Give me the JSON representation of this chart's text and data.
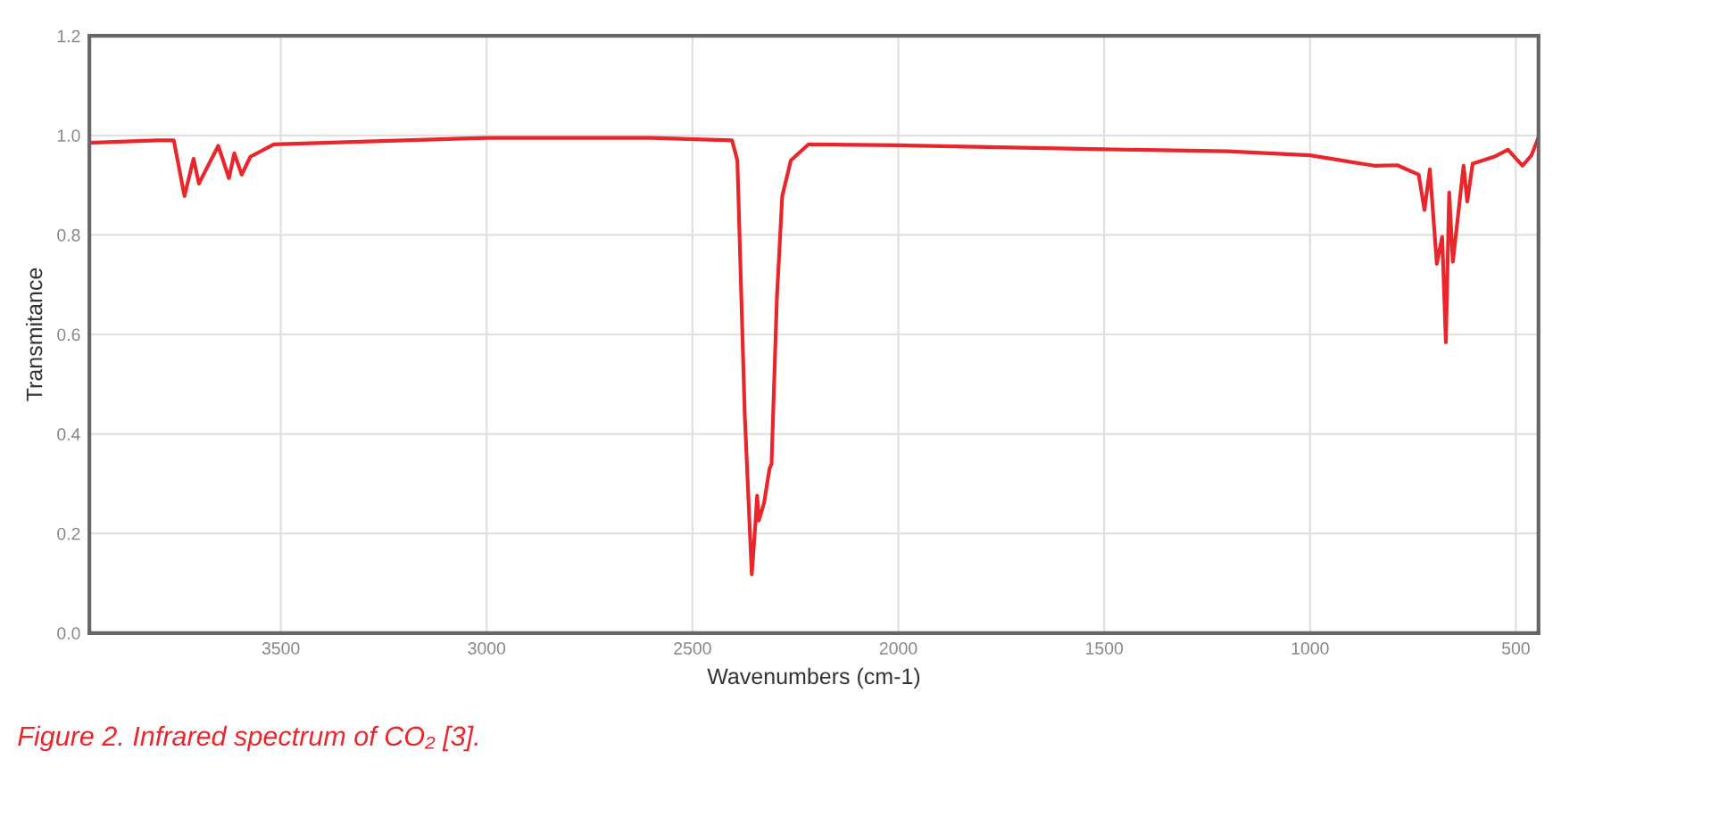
{
  "chart_data": {
    "type": "line",
    "xlabel": "Wavenumbers (cm-1)",
    "ylabel": "Transmitance",
    "annotations": [
      "Figure 2. Infrared spectrum of CO₂ [3]."
    ],
    "x": [
      3965,
      3800,
      3760,
      3734,
      3712,
      3699,
      3652,
      3626,
      3613,
      3595,
      3574,
      3517,
      3000,
      2600,
      2404,
      2391,
      2373,
      2356,
      2347,
      2343,
      2339,
      2326,
      2313,
      2308,
      2295,
      2282,
      2261,
      2218,
      2000,
      1500,
      1200,
      1000,
      844,
      788,
      736,
      722,
      709,
      692,
      679,
      670,
      662,
      653,
      627,
      618,
      605,
      553,
      519,
      484,
      462,
      445
    ],
    "series": [
      {
        "color": "#e8262b",
        "values": [
          0.985,
          0.99,
          0.99,
          0.878,
          0.953,
          0.903,
          0.979,
          0.914,
          0.964,
          0.921,
          0.957,
          0.982,
          0.995,
          0.995,
          0.99,
          0.95,
          0.437,
          0.118,
          0.222,
          0.276,
          0.226,
          0.262,
          0.33,
          0.34,
          0.674,
          0.878,
          0.95,
          0.982,
          0.98,
          0.972,
          0.968,
          0.96,
          0.939,
          0.94,
          0.921,
          0.85,
          0.932,
          0.742,
          0.796,
          0.584,
          0.885,
          0.746,
          0.939,
          0.867,
          0.943,
          0.957,
          0.971,
          0.939,
          0.96,
          0.996
        ]
      }
    ],
    "xlim": [
      3965,
      445
    ],
    "xticks": [
      3500,
      3000,
      2500,
      2000,
      1500,
      1000,
      500
    ],
    "ylim": [
      0,
      1.2
    ],
    "yticks": [
      {
        "value": 0,
        "label": "0.0"
      },
      0.2,
      0.4,
      0.6,
      0.8,
      {
        "value": 1,
        "label": "1.0"
      },
      1.2
    ],
    "grid": true,
    "marker": "none",
    "line_style": "solid",
    "legend": false
  }
}
